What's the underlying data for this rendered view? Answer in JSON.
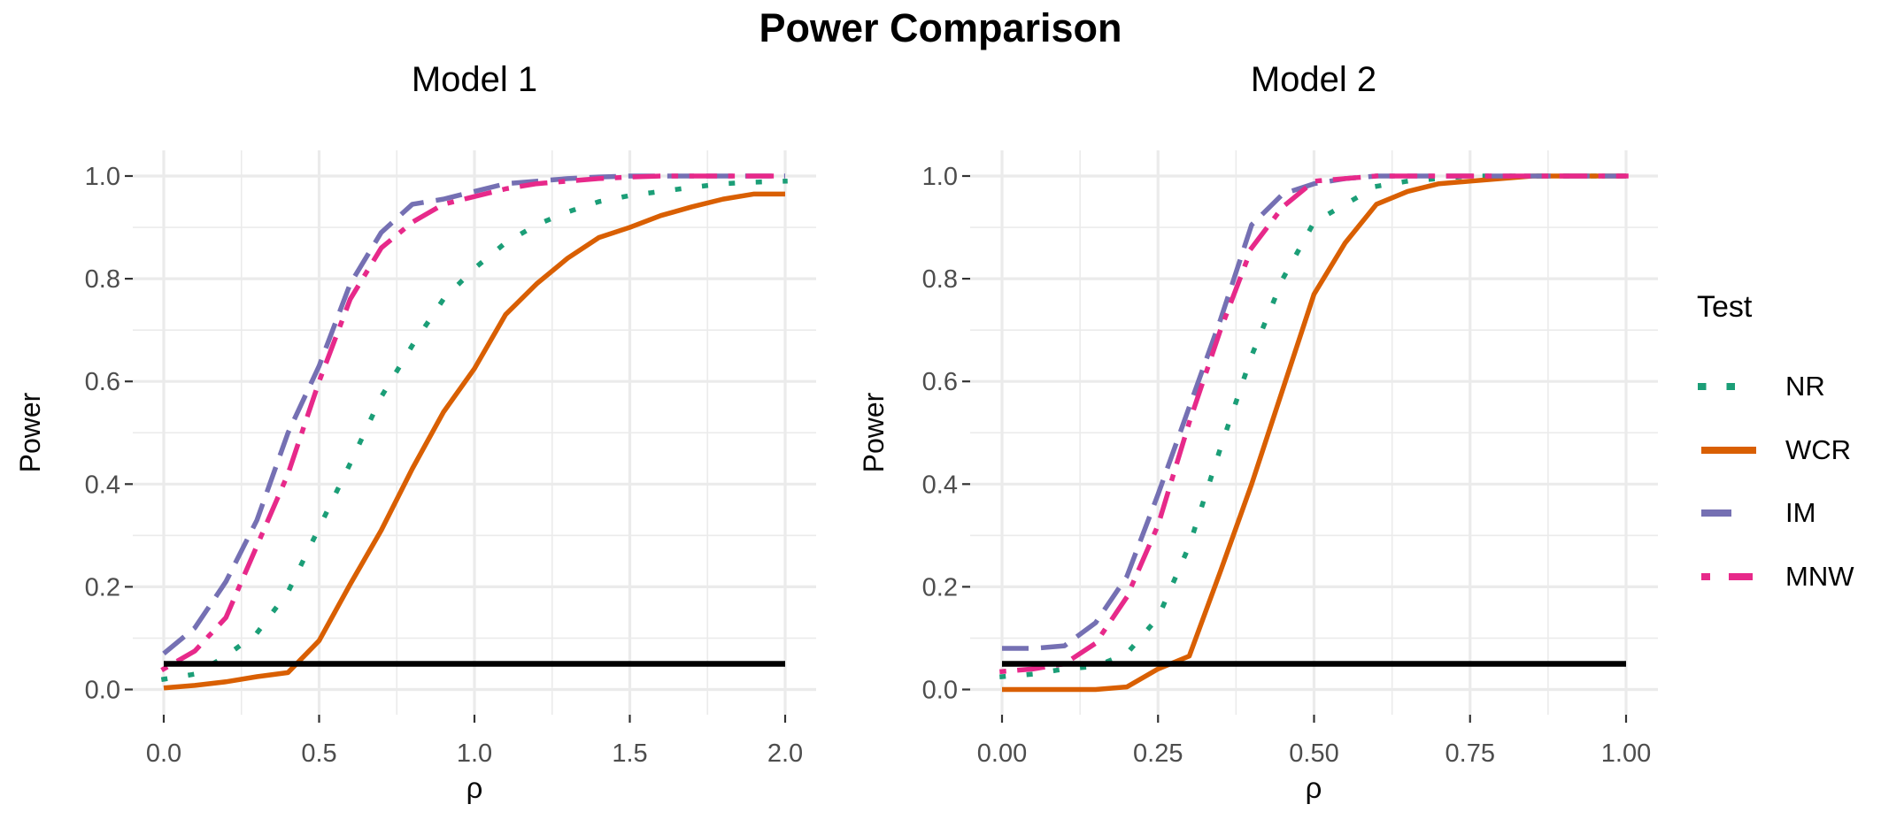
{
  "title": "Power Comparison",
  "chart_data": {
    "type": "line",
    "title": "Power Comparison",
    "background_color": "#FFFFFF",
    "grid": true,
    "legend": {
      "title": "Test",
      "position": "right",
      "items": [
        {
          "label": "NR",
          "color": "#1B9E77",
          "linetype": "dotted"
        },
        {
          "label": "WCR",
          "color": "#D95F02",
          "linetype": "solid"
        },
        {
          "label": "IM",
          "color": "#7570B3",
          "linetype": "dashed"
        },
        {
          "label": "MNW",
          "color": "#E7298A",
          "linetype": "dotdash"
        }
      ]
    },
    "ref_line": {
      "value": 0.05,
      "color": "#000000"
    },
    "panels": [
      {
        "title": "Model 1",
        "xlabel": "ρ",
        "ylabel": "Power",
        "xlim": [
          0,
          2
        ],
        "ylim": [
          0,
          1
        ],
        "x_tick_labels": [
          "0.0",
          "0.5",
          "1.0",
          "1.5",
          "2.0"
        ],
        "x_tick_values": [
          0,
          0.5,
          1.0,
          1.5,
          2.0
        ],
        "y_tick_labels": [
          "0.0",
          "0.2",
          "0.4",
          "0.6",
          "0.8",
          "1.0"
        ],
        "y_tick_values": [
          0,
          0.2,
          0.4,
          0.6,
          0.8,
          1.0
        ],
        "x": [
          0,
          0.1,
          0.2,
          0.3,
          0.4,
          0.5,
          0.6,
          0.7,
          0.8,
          0.9,
          1.0,
          1.1,
          1.2,
          1.3,
          1.4,
          1.5,
          1.6,
          1.7,
          1.8,
          1.9,
          2.0
        ],
        "series": [
          {
            "name": "NR",
            "color": "#1B9E77",
            "values": [
              0.02,
              0.03,
              0.065,
              0.11,
              0.19,
              0.315,
              0.44,
              0.57,
              0.67,
              0.76,
              0.82,
              0.87,
              0.905,
              0.93,
              0.95,
              0.962,
              0.97,
              0.978,
              0.985,
              0.988,
              0.99
            ]
          },
          {
            "name": "WCR",
            "color": "#D95F02",
            "values": [
              0.003,
              0.008,
              0.015,
              0.025,
              0.033,
              0.095,
              0.205,
              0.31,
              0.43,
              0.54,
              0.625,
              0.73,
              0.79,
              0.84,
              0.88,
              0.9,
              0.923,
              0.94,
              0.955,
              0.965,
              0.965
            ]
          },
          {
            "name": "IM",
            "color": "#7570B3",
            "values": [
              0.07,
              0.12,
              0.21,
              0.33,
              0.5,
              0.63,
              0.79,
              0.89,
              0.945,
              0.955,
              0.97,
              0.985,
              0.99,
              0.995,
              0.998,
              1.0,
              1.0,
              1.0,
              1.0,
              1.0,
              1.0
            ]
          },
          {
            "name": "MNW",
            "color": "#E7298A",
            "values": [
              0.04,
              0.075,
              0.14,
              0.28,
              0.42,
              0.6,
              0.76,
              0.86,
              0.91,
              0.945,
              0.96,
              0.975,
              0.985,
              0.99,
              0.995,
              0.998,
              1.0,
              1.0,
              1.0,
              1.0,
              1.0
            ]
          }
        ]
      },
      {
        "title": "Model 2",
        "xlabel": "ρ",
        "ylabel": "Power",
        "xlim": [
          0,
          1
        ],
        "ylim": [
          0,
          1
        ],
        "x_tick_labels": [
          "0.00",
          "0.25",
          "0.50",
          "0.75",
          "1.00"
        ],
        "x_tick_values": [
          0,
          0.25,
          0.5,
          0.75,
          1.0
        ],
        "y_tick_labels": [
          "0.0",
          "0.2",
          "0.4",
          "0.6",
          "0.8",
          "1.0"
        ],
        "y_tick_values": [
          0,
          0.2,
          0.4,
          0.6,
          0.8,
          1.0
        ],
        "x": [
          0,
          0.05,
          0.1,
          0.15,
          0.2,
          0.25,
          0.3,
          0.35,
          0.4,
          0.45,
          0.5,
          0.55,
          0.6,
          0.65,
          0.7,
          0.75,
          0.8,
          0.85,
          0.9,
          0.95,
          1.0
        ],
        "series": [
          {
            "name": "NR",
            "color": "#1B9E77",
            "values": [
              0.025,
              0.03,
              0.04,
              0.045,
              0.07,
              0.14,
              0.28,
              0.47,
              0.65,
              0.8,
              0.91,
              0.945,
              0.98,
              0.99,
              0.995,
              1.0,
              1.0,
              1.0,
              1.0,
              1.0,
              1.0
            ]
          },
          {
            "name": "WCR",
            "color": "#D95F02",
            "values": [
              0.0,
              0.0,
              0.0,
              0.0,
              0.005,
              0.04,
              0.065,
              0.23,
              0.4,
              0.585,
              0.77,
              0.87,
              0.945,
              0.97,
              0.985,
              0.99,
              0.995,
              1.0,
              1.0,
              1.0,
              1.0
            ]
          },
          {
            "name": "IM",
            "color": "#7570B3",
            "values": [
              0.08,
              0.08,
              0.085,
              0.13,
              0.22,
              0.38,
              0.55,
              0.72,
              0.905,
              0.965,
              0.985,
              0.995,
              1.0,
              1.0,
              1.0,
              1.0,
              1.0,
              1.0,
              1.0,
              1.0,
              1.0
            ]
          },
          {
            "name": "MNW",
            "color": "#E7298A",
            "values": [
              0.035,
              0.04,
              0.05,
              0.09,
              0.18,
              0.32,
              0.52,
              0.7,
              0.86,
              0.94,
              0.99,
              0.995,
              1.0,
              1.0,
              1.0,
              1.0,
              1.0,
              1.0,
              1.0,
              1.0,
              1.0
            ]
          }
        ]
      }
    ]
  }
}
